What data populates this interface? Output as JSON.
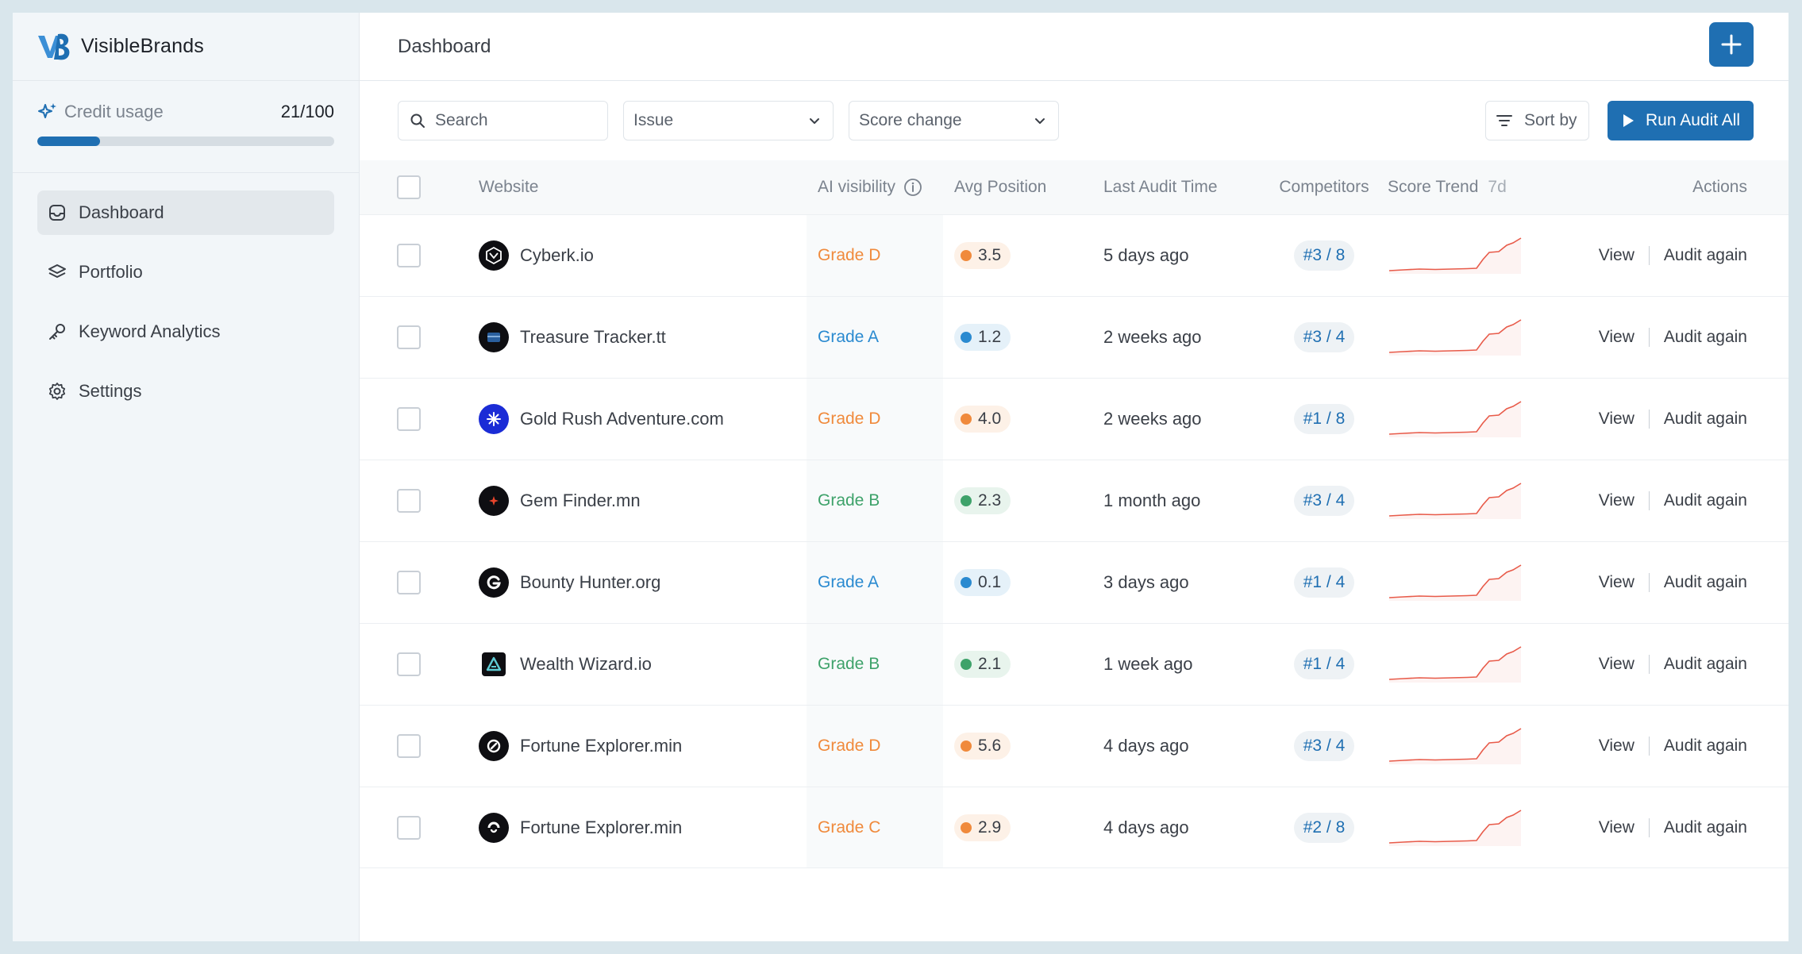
{
  "app": {
    "brand_name": "VisibleBrands"
  },
  "credit": {
    "label": "Credit usage",
    "value": "21/100",
    "used_fraction": 0.21
  },
  "sidebar": {
    "items": [
      {
        "label": "Dashboard",
        "icon": "inbox-icon",
        "active": true
      },
      {
        "label": "Portfolio",
        "icon": "layers-icon",
        "active": false
      },
      {
        "label": "Keyword Analytics",
        "icon": "key-icon",
        "active": false
      },
      {
        "label": "Settings",
        "icon": "gear-icon",
        "active": false
      }
    ]
  },
  "header": {
    "title": "Dashboard"
  },
  "toolbar": {
    "search_placeholder": "Search",
    "issue_select": "Issue",
    "score_change_select": "Score change",
    "sort_label": "Sort by",
    "run_label": "Run Audit All"
  },
  "table": {
    "headers": {
      "website": "Website",
      "ai_visibility": "AI visibility",
      "avg_position": "Avg Position",
      "last_audit": "Last Audit Time",
      "competitors": "Competitors",
      "score_trend": "Score Trend",
      "trend_period": "7d",
      "actions": "Actions"
    },
    "view_label": "View",
    "audit_again_label": "Audit again",
    "rows": [
      {
        "website": "Cyberk.io",
        "grade": "Grade D",
        "grade_color": "#f08a3c",
        "avg_position": "3.5",
        "dot_color": "#f08a3c",
        "last_audit": "5 days ago",
        "competitors": "#3 / 8"
      },
      {
        "website": "Treasure Tracker.tt",
        "grade": "Grade A",
        "grade_color": "#2a8ad0",
        "avg_position": "1.2",
        "dot_color": "#2a8ad0",
        "last_audit": "2 weeks ago",
        "competitors": "#3 / 4"
      },
      {
        "website": "Gold Rush Adventure.com",
        "grade": "Grade D",
        "grade_color": "#f08a3c",
        "avg_position": "4.0",
        "dot_color": "#f08a3c",
        "last_audit": "2 weeks ago",
        "competitors": "#1 / 8"
      },
      {
        "website": "Gem Finder.mn",
        "grade": "Grade B",
        "grade_color": "#3ea26a",
        "avg_position": "2.3",
        "dot_color": "#3ea26a",
        "last_audit": "1 month ago",
        "competitors": "#3 / 4"
      },
      {
        "website": "Bounty Hunter.org",
        "grade": "Grade A",
        "grade_color": "#2a8ad0",
        "avg_position": "0.1",
        "dot_color": "#2a8ad0",
        "last_audit": "3 days ago",
        "competitors": "#1 / 4"
      },
      {
        "website": "Wealth Wizard.io",
        "grade": "Grade B",
        "grade_color": "#3ea26a",
        "avg_position": "2.1",
        "dot_color": "#3ea26a",
        "last_audit": "1 week ago",
        "competitors": "#1 / 4"
      },
      {
        "website": "Fortune Explorer.min",
        "grade": "Grade D",
        "grade_color": "#f08a3c",
        "avg_position": "5.6",
        "dot_color": "#f08a3c",
        "last_audit": "4 days ago",
        "competitors": "#3 / 4"
      },
      {
        "website": "Fortune Explorer.min",
        "grade": "Grade C",
        "grade_color": "#f08a3c",
        "avg_position": "2.9",
        "dot_color": "#f08a3c",
        "last_audit": "4 days ago",
        "competitors": "#2 / 8"
      }
    ]
  },
  "colors": {
    "accent": "#1f6fb2",
    "trend_line": "#e85b4a"
  }
}
